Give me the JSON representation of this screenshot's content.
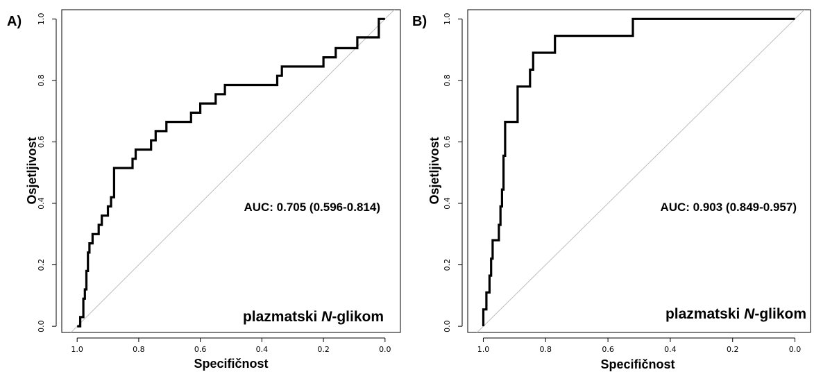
{
  "chart_data": [
    {
      "type": "line",
      "panel_label": "A)",
      "xlabel": "Specifičnost",
      "ylabel": "Osjetljivost",
      "x_reversed": true,
      "xlim": [
        1.05,
        -0.05
      ],
      "ylim": [
        -0.02,
        1.03
      ],
      "xticks": [
        "1.0",
        "0.8",
        "0.6",
        "0.4",
        "0.2",
        "0.0"
      ],
      "xtick_values": [
        1.0,
        0.8,
        0.6,
        0.4,
        0.2,
        0.0
      ],
      "yticks": [
        "0.0",
        "0.2",
        "0.4",
        "0.6",
        "0.8",
        "1.0"
      ],
      "ytick_values": [
        0.0,
        0.2,
        0.4,
        0.6,
        0.8,
        1.0
      ],
      "annotation": "AUC: 0.705 (0.596-0.814)",
      "caption_pre": "plazmatski ",
      "caption_italic": "N",
      "caption_post": "-glikom",
      "diagonal_color": "#bdbdbd",
      "line_color": "#000000",
      "x": [
        1.0,
        0.99,
        0.99,
        0.98,
        0.98,
        0.975,
        0.975,
        0.97,
        0.97,
        0.965,
        0.965,
        0.96,
        0.96,
        0.95,
        0.95,
        0.93,
        0.93,
        0.92,
        0.92,
        0.915,
        0.915,
        0.9,
        0.9,
        0.89,
        0.89,
        0.88,
        0.88,
        0.82,
        0.82,
        0.81,
        0.81,
        0.76,
        0.76,
        0.745,
        0.745,
        0.73,
        0.73,
        0.71,
        0.71,
        0.63,
        0.63,
        0.6,
        0.6,
        0.55,
        0.55,
        0.52,
        0.52,
        0.35,
        0.35,
        0.335,
        0.335,
        0.2,
        0.2,
        0.16,
        0.16,
        0.09,
        0.09,
        0.02,
        0.02,
        0.0
      ],
      "y": [
        0.0,
        0.0,
        0.03,
        0.03,
        0.09,
        0.09,
        0.12,
        0.12,
        0.18,
        0.18,
        0.24,
        0.24,
        0.27,
        0.27,
        0.3,
        0.3,
        0.33,
        0.33,
        0.36,
        0.36,
        0.36,
        0.36,
        0.39,
        0.39,
        0.42,
        0.42,
        0.515,
        0.515,
        0.545,
        0.545,
        0.575,
        0.575,
        0.605,
        0.605,
        0.635,
        0.635,
        0.635,
        0.635,
        0.665,
        0.665,
        0.695,
        0.695,
        0.725,
        0.725,
        0.755,
        0.755,
        0.785,
        0.785,
        0.815,
        0.815,
        0.845,
        0.845,
        0.875,
        0.875,
        0.905,
        0.905,
        0.94,
        0.94,
        1.0,
        1.0
      ]
    },
    {
      "type": "line",
      "panel_label": "B)",
      "xlabel": "Specifičnost",
      "ylabel": "Osjetljivost",
      "x_reversed": true,
      "xlim": [
        1.05,
        -0.05
      ],
      "ylim": [
        -0.02,
        1.03
      ],
      "xticks": [
        "1.0",
        "0.8",
        "0.6",
        "0.4",
        "0.2",
        "0.0"
      ],
      "xtick_values": [
        1.0,
        0.8,
        0.6,
        0.4,
        0.2,
        0.0
      ],
      "yticks": [
        "0.0",
        "0.2",
        "0.4",
        "0.6",
        "0.8",
        "1.0"
      ],
      "ytick_values": [
        0.0,
        0.2,
        0.4,
        0.6,
        0.8,
        1.0
      ],
      "annotation": "AUC: 0.903 (0.849-0.957)",
      "caption_pre": "plazmatski ",
      "caption_italic": "N",
      "caption_post": "-glikom",
      "diagonal_color": "#bdbdbd",
      "line_color": "#000000",
      "x": [
        1.0,
        1.0,
        0.99,
        0.99,
        0.98,
        0.98,
        0.975,
        0.975,
        0.97,
        0.97,
        0.95,
        0.95,
        0.945,
        0.945,
        0.94,
        0.94,
        0.935,
        0.935,
        0.93,
        0.93,
        0.89,
        0.89,
        0.85,
        0.85,
        0.84,
        0.84,
        0.77,
        0.77,
        0.52,
        0.52,
        0.0
      ],
      "y": [
        0.0,
        0.055,
        0.055,
        0.11,
        0.11,
        0.165,
        0.165,
        0.22,
        0.22,
        0.28,
        0.28,
        0.33,
        0.33,
        0.39,
        0.39,
        0.445,
        0.445,
        0.555,
        0.555,
        0.665,
        0.665,
        0.78,
        0.78,
        0.835,
        0.835,
        0.89,
        0.89,
        0.945,
        0.945,
        1.0,
        1.0
      ]
    }
  ]
}
